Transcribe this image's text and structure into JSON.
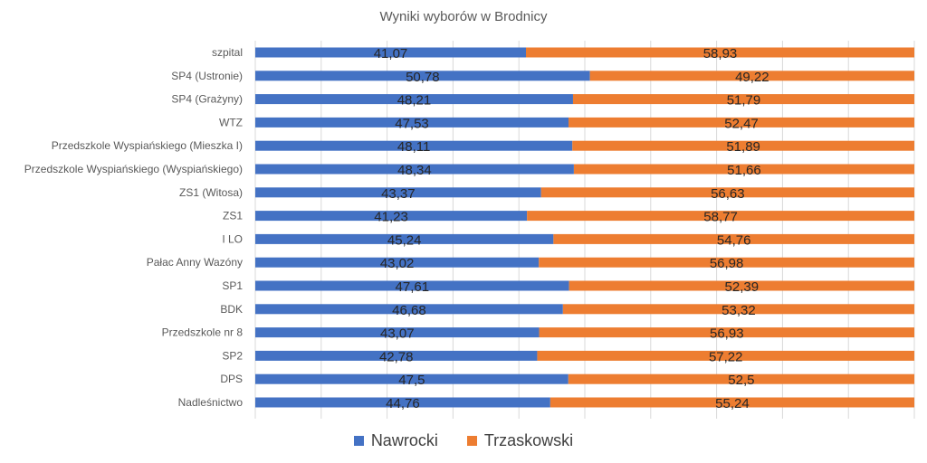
{
  "colors": {
    "nawrocki": "#4472C4",
    "trzaskowski": "#ED7D31"
  },
  "chart_data": {
    "type": "bar",
    "orientation": "horizontal",
    "stacked": "percent",
    "title": "Wyniki wyborów w Brodnicy",
    "categories": [
      "szpital",
      "SP4 (Ustronie)",
      "SP4 (Grażyny)",
      "WTZ",
      "Przedszkole Wyspiańskiego (Mieszka I)",
      "Przedszkole Wyspiańskiego (Wyspiańskiego)",
      "ZS1 (Witosa)",
      "ZS1",
      "I LO",
      "Pałac Anny Wazóny",
      "SP1",
      "BDK",
      "Przedszkole nr 8",
      "SP2",
      "DPS",
      "Nadleśnictwo"
    ],
    "series": [
      {
        "name": "Nawrocki",
        "values": [
          41.07,
          50.78,
          48.21,
          47.53,
          48.11,
          48.34,
          43.37,
          41.23,
          45.24,
          43.02,
          47.61,
          46.68,
          43.07,
          42.78,
          47.5,
          44.76
        ],
        "labels": [
          "41,07",
          "50,78",
          "48,21",
          "47,53",
          "48,11",
          "48,34",
          "43,37",
          "41,23",
          "45,24",
          "43,02",
          "47,61",
          "46,68",
          "43,07",
          "42,78",
          "47,5",
          "44,76"
        ]
      },
      {
        "name": "Trzaskowski",
        "values": [
          58.93,
          49.22,
          51.79,
          52.47,
          51.89,
          51.66,
          56.63,
          58.77,
          54.76,
          56.98,
          52.39,
          53.32,
          56.93,
          57.22,
          52.5,
          55.24
        ],
        "labels": [
          "58,93",
          "49,22",
          "51,79",
          "52,47",
          "51,89",
          "51,66",
          "56,63",
          "58,77",
          "54,76",
          "56,98",
          "52,39",
          "53,32",
          "56,93",
          "57,22",
          "52,5",
          "55,24"
        ]
      }
    ],
    "xlim": [
      0,
      100
    ],
    "grid": true,
    "legend": "bottom"
  }
}
